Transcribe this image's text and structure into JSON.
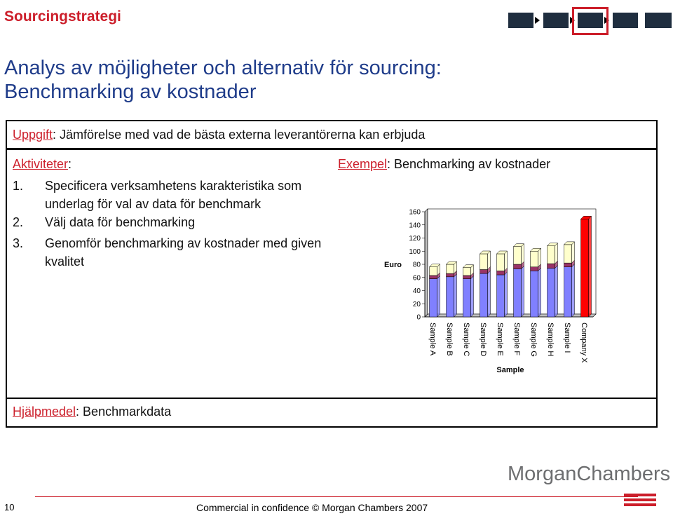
{
  "header": {
    "title": "Sourcingstrategi"
  },
  "main_title": {
    "line1": "Analys av möjligheter och alternativ för sourcing:",
    "line2": "Benchmarking av kostnader"
  },
  "task": {
    "label": "Uppgift",
    "text": ": Jämförelse med vad de bästa externa leverantörerna kan erbjuda"
  },
  "activities": {
    "label": "Aktiviteter",
    "colon": ":",
    "items": [
      {
        "num": "1.",
        "text": "Specificera verksamhetens karakteristika som underlag för val av data för benchmark"
      },
      {
        "num": "2.",
        "text": "Välj data för benchmarking"
      },
      {
        "num": "3.",
        "text": "Genomför benchmarking av kostnader med given kvalitet"
      }
    ]
  },
  "example": {
    "label": "Exempel",
    "text": ": Benchmarking av kostnader"
  },
  "chart_data": {
    "type": "bar",
    "title": "",
    "xlabel": "Sample",
    "ylabel": "Euro",
    "ylim": [
      0,
      160
    ],
    "yticks": [
      "0",
      "20",
      "40",
      "60",
      "80",
      "100",
      "120",
      "140",
      "160"
    ],
    "categories": [
      "Sample A",
      "Sample B",
      "Sample C",
      "Sample D",
      "Sample E",
      "Sample F",
      "Sample G",
      "Sample H",
      "Sample I",
      "Company X"
    ],
    "stacked": true,
    "series": [
      {
        "values": [
          58,
          61,
          58,
          66,
          64,
          73,
          70,
          74,
          76,
          0
        ],
        "color": "#8080ff"
      },
      {
        "values": [
          5,
          5,
          5,
          6,
          6,
          7,
          6,
          7,
          6,
          0
        ],
        "color": "#993366"
      },
      {
        "values": [
          13,
          14,
          12,
          24,
          26,
          27,
          24,
          27,
          28,
          0
        ],
        "color": "#ffffcc"
      },
      {
        "values": [
          0,
          0,
          0,
          0,
          0,
          0,
          0,
          0,
          0,
          149
        ],
        "color": "#ff0000"
      }
    ]
  },
  "help": {
    "label": "Hjälpmedel",
    "text": ": Benchmarkdata"
  },
  "footer": {
    "page_number": "10",
    "text": "Commercial in confidence © Morgan Chambers 2007"
  },
  "logo": {
    "text": "MorganChambers"
  },
  "colors": {
    "brand_red": "#cc1e2a",
    "title_blue": "#1f3c8a",
    "process_dark": "#1f2e3f"
  }
}
